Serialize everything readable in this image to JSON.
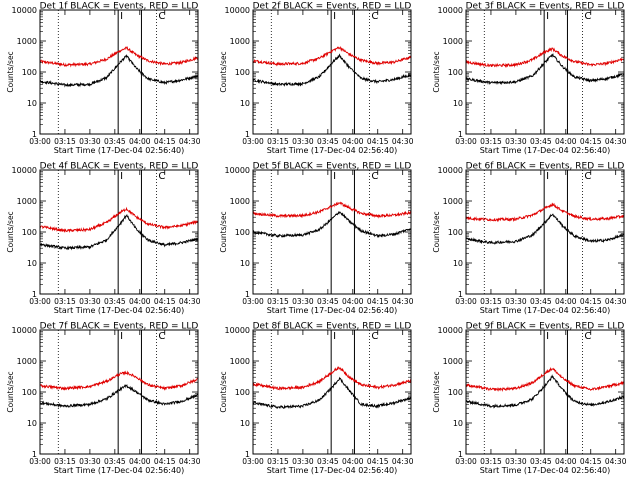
{
  "colors": {
    "events": "#000000",
    "lld": "#e00000",
    "background": "#ffffff"
  },
  "chart_data": [
    {
      "type": "line",
      "title": "Det 1f BLACK = Events, RED = LLD",
      "ylabel": "Counts/sec",
      "xlabel": "Start Time (17-Dec-04 02:56:40)",
      "yscale": "log",
      "ylim": [
        1,
        10000
      ],
      "ytick_labels": [
        "1",
        "10",
        "100",
        "1000",
        "10000"
      ],
      "xlim": [
        "03:00",
        "04:35"
      ],
      "xtick_labels": [
        "03:00",
        "03:15",
        "03:30",
        "03:45",
        "04:00",
        "04:15",
        "04:30"
      ],
      "markers": [
        {
          "time": "03:11",
          "style": "dotted"
        },
        {
          "time": "03:47",
          "style": "solid",
          "label": "I"
        },
        {
          "time": "04:01",
          "style": "solid"
        },
        {
          "time": "04:10",
          "style": "dotted",
          "label": "C"
        }
      ],
      "series": [
        {
          "color": "#e00000",
          "x": [
            "03:00",
            "03:15",
            "03:30",
            "03:40",
            "03:48",
            "03:52",
            "03:58",
            "04:05",
            "04:15",
            "04:25",
            "04:35"
          ],
          "values": [
            220,
            170,
            180,
            260,
            480,
            600,
            350,
            230,
            180,
            200,
            290
          ]
        },
        {
          "color": "#000000",
          "x": [
            "03:00",
            "03:15",
            "03:30",
            "03:40",
            "03:48",
            "03:52",
            "03:58",
            "04:05",
            "04:15",
            "04:25",
            "04:35"
          ],
          "values": [
            50,
            38,
            40,
            65,
            200,
            330,
            130,
            60,
            45,
            55,
            75
          ]
        }
      ]
    },
    {
      "type": "line",
      "title": "Det 2f BLACK = Events, RED = LLD",
      "ylabel": "Counts/sec",
      "xlabel": "Start Time (17-Dec-04 02:56:40)",
      "yscale": "log",
      "ylim": [
        1,
        10000
      ],
      "ytick_labels": [
        "1",
        "10",
        "100",
        "1000",
        "10000"
      ],
      "xlim": [
        "03:00",
        "04:35"
      ],
      "xtick_labels": [
        "03:00",
        "03:15",
        "03:30",
        "03:45",
        "04:00",
        "04:15",
        "04:30"
      ],
      "markers": [
        {
          "time": "03:11",
          "style": "dotted"
        },
        {
          "time": "03:47",
          "style": "solid",
          "label": "I"
        },
        {
          "time": "04:01",
          "style": "solid"
        },
        {
          "time": "04:10",
          "style": "dotted",
          "label": "C"
        }
      ],
      "series": [
        {
          "color": "#e00000",
          "x": [
            "03:00",
            "03:15",
            "03:30",
            "03:40",
            "03:48",
            "03:52",
            "03:58",
            "04:05",
            "04:15",
            "04:25",
            "04:35"
          ],
          "values": [
            230,
            180,
            190,
            280,
            500,
            620,
            370,
            240,
            190,
            210,
            300
          ]
        },
        {
          "color": "#000000",
          "x": [
            "03:00",
            "03:15",
            "03:30",
            "03:40",
            "03:48",
            "03:52",
            "03:58",
            "04:05",
            "04:15",
            "04:25",
            "04:35"
          ],
          "values": [
            55,
            40,
            42,
            70,
            210,
            340,
            140,
            62,
            48,
            58,
            80
          ]
        }
      ]
    },
    {
      "type": "line",
      "title": "Det 3f BLACK = Events, RED = LLD",
      "ylabel": "Counts/sec",
      "xlabel": "Start Time (17-Dec-04 02:56:40)",
      "yscale": "log",
      "ylim": [
        1,
        10000
      ],
      "ytick_labels": [
        "1",
        "10",
        "100",
        "1000",
        "10000"
      ],
      "xlim": [
        "03:00",
        "04:35"
      ],
      "xtick_labels": [
        "03:00",
        "03:15",
        "03:30",
        "03:45",
        "04:00",
        "04:15",
        "04:30"
      ],
      "markers": [
        {
          "time": "03:11",
          "style": "dotted"
        },
        {
          "time": "03:47",
          "style": "solid",
          "label": "I"
        },
        {
          "time": "04:01",
          "style": "solid"
        },
        {
          "time": "04:10",
          "style": "dotted",
          "label": "C"
        }
      ],
      "series": [
        {
          "color": "#e00000",
          "x": [
            "03:00",
            "03:15",
            "03:30",
            "03:40",
            "03:48",
            "03:52",
            "03:58",
            "04:05",
            "04:15",
            "04:25",
            "04:35"
          ],
          "values": [
            210,
            160,
            170,
            250,
            460,
            560,
            330,
            220,
            170,
            190,
            270
          ]
        },
        {
          "color": "#000000",
          "x": [
            "03:00",
            "03:15",
            "03:30",
            "03:40",
            "03:48",
            "03:52",
            "03:58",
            "04:05",
            "04:15",
            "04:25",
            "04:35"
          ],
          "values": [
            60,
            45,
            48,
            75,
            220,
            360,
            150,
            70,
            52,
            62,
            85
          ]
        }
      ]
    },
    {
      "type": "line",
      "title": "Det 4f BLACK = Events, RED = LLD",
      "ylabel": "Counts/sec",
      "xlabel": "Start Time (17-Dec-04 02:56:40)",
      "yscale": "log",
      "ylim": [
        1,
        10000
      ],
      "ytick_labels": [
        "1",
        "10",
        "100",
        "1000",
        "10000"
      ],
      "xlim": [
        "03:00",
        "04:35"
      ],
      "xtick_labels": [
        "03:00",
        "03:15",
        "03:30",
        "03:45",
        "04:00",
        "04:15",
        "04:30"
      ],
      "markers": [
        {
          "time": "03:11",
          "style": "dotted"
        },
        {
          "time": "03:47",
          "style": "solid",
          "label": "I"
        },
        {
          "time": "04:01",
          "style": "solid"
        },
        {
          "time": "04:10",
          "style": "dotted",
          "label": "C"
        }
      ],
      "series": [
        {
          "color": "#e00000",
          "x": [
            "03:00",
            "03:15",
            "03:30",
            "03:40",
            "03:48",
            "03:52",
            "03:58",
            "04:05",
            "04:15",
            "04:25",
            "04:35"
          ],
          "values": [
            150,
            110,
            120,
            200,
            420,
            560,
            300,
            180,
            140,
            160,
            220
          ]
        },
        {
          "color": "#000000",
          "x": [
            "03:00",
            "03:15",
            "03:30",
            "03:40",
            "03:48",
            "03:52",
            "03:58",
            "04:05",
            "04:15",
            "04:25",
            "04:35"
          ],
          "values": [
            40,
            30,
            33,
            55,
            180,
            350,
            120,
            55,
            38,
            45,
            60
          ]
        }
      ]
    },
    {
      "type": "line",
      "title": "Det 5f BLACK = Events, RED = LLD",
      "ylabel": "Counts/sec",
      "xlabel": "Start Time (17-Dec-04 02:56:40)",
      "yscale": "log",
      "ylim": [
        1,
        10000
      ],
      "ytick_labels": [
        "1",
        "10",
        "100",
        "1000",
        "10000"
      ],
      "xlim": [
        "03:00",
        "04:35"
      ],
      "xtick_labels": [
        "03:00",
        "03:15",
        "03:30",
        "03:45",
        "04:00",
        "04:15",
        "04:30"
      ],
      "markers": [
        {
          "time": "03:11",
          "style": "dotted"
        },
        {
          "time": "03:47",
          "style": "solid",
          "label": "I"
        },
        {
          "time": "04:01",
          "style": "solid"
        },
        {
          "time": "04:10",
          "style": "dotted",
          "label": "C"
        }
      ],
      "series": [
        {
          "color": "#e00000",
          "x": [
            "03:00",
            "03:15",
            "03:30",
            "03:40",
            "03:48",
            "03:52",
            "03:58",
            "04:05",
            "04:15",
            "04:25",
            "04:35"
          ],
          "values": [
            400,
            330,
            340,
            450,
            700,
            880,
            600,
            400,
            330,
            350,
            420
          ]
        },
        {
          "color": "#000000",
          "x": [
            "03:00",
            "03:15",
            "03:30",
            "03:40",
            "03:48",
            "03:52",
            "03:58",
            "04:05",
            "04:15",
            "04:25",
            "04:35"
          ],
          "values": [
            100,
            75,
            80,
            120,
            280,
            450,
            220,
            110,
            75,
            85,
            130
          ]
        }
      ]
    },
    {
      "type": "line",
      "title": "Det 6f BLACK = Events, RED = LLD",
      "ylabel": "Counts/sec",
      "xlabel": "Start Time (17-Dec-04 02:56:40)",
      "yscale": "log",
      "ylim": [
        1,
        10000
      ],
      "ytick_labels": [
        "1",
        "10",
        "100",
        "1000",
        "10000"
      ],
      "xlim": [
        "03:00",
        "04:35"
      ],
      "xtick_labels": [
        "03:00",
        "03:15",
        "03:30",
        "03:45",
        "04:00",
        "04:15",
        "04:30"
      ],
      "markers": [
        {
          "time": "03:11",
          "style": "dotted"
        },
        {
          "time": "03:47",
          "style": "solid",
          "label": "I"
        },
        {
          "time": "04:01",
          "style": "solid"
        },
        {
          "time": "04:10",
          "style": "dotted",
          "label": "C"
        }
      ],
      "series": [
        {
          "color": "#e00000",
          "x": [
            "03:00",
            "03:15",
            "03:30",
            "03:40",
            "03:48",
            "03:52",
            "03:58",
            "04:05",
            "04:15",
            "04:25",
            "04:35"
          ],
          "values": [
            280,
            250,
            260,
            350,
            600,
            780,
            480,
            320,
            260,
            270,
            330
          ]
        },
        {
          "color": "#000000",
          "x": [
            "03:00",
            "03:15",
            "03:30",
            "03:40",
            "03:48",
            "03:52",
            "03:58",
            "04:05",
            "04:15",
            "04:25",
            "04:35"
          ],
          "values": [
            60,
            45,
            50,
            80,
            220,
            380,
            160,
            75,
            50,
            55,
            80
          ]
        }
      ]
    },
    {
      "type": "line",
      "title": "Det 7f BLACK = Events, RED = LLD",
      "ylabel": "Counts/sec",
      "xlabel": "Start Time (17-Dec-04 02:56:40)",
      "yscale": "log",
      "ylim": [
        1,
        10000
      ],
      "ytick_labels": [
        "1",
        "10",
        "100",
        "1000",
        "10000"
      ],
      "xlim": [
        "03:00",
        "04:35"
      ],
      "xtick_labels": [
        "03:00",
        "03:15",
        "03:30",
        "03:45",
        "04:00",
        "04:15",
        "04:30"
      ],
      "markers": [
        {
          "time": "03:11",
          "style": "dotted"
        },
        {
          "time": "03:47",
          "style": "solid",
          "label": "I"
        },
        {
          "time": "04:01",
          "style": "solid"
        },
        {
          "time": "04:10",
          "style": "dotted",
          "label": "C"
        }
      ],
      "series": [
        {
          "color": "#e00000",
          "x": [
            "03:00",
            "03:15",
            "03:30",
            "03:40",
            "03:48",
            "03:52",
            "03:58",
            "04:05",
            "04:15",
            "04:25",
            "04:35"
          ],
          "values": [
            160,
            130,
            150,
            220,
            380,
            420,
            300,
            170,
            130,
            160,
            260
          ]
        },
        {
          "color": "#000000",
          "x": [
            "03:00",
            "03:15",
            "03:30",
            "03:40",
            "03:48",
            "03:52",
            "03:58",
            "04:05",
            "04:15",
            "04:25",
            "04:35"
          ],
          "values": [
            45,
            35,
            40,
            60,
            120,
            160,
            100,
            55,
            40,
            50,
            80
          ]
        }
      ]
    },
    {
      "type": "line",
      "title": "Det 8f BLACK = Events, RED = LLD",
      "ylabel": "Counts/sec",
      "xlabel": "Start Time (17-Dec-04 02:56:40)",
      "yscale": "log",
      "ylim": [
        1,
        10000
      ],
      "ytick_labels": [
        "1",
        "10",
        "100",
        "1000",
        "10000"
      ],
      "xlim": [
        "03:00",
        "04:35"
      ],
      "xtick_labels": [
        "03:00",
        "03:15",
        "03:30",
        "03:45",
        "04:00",
        "04:15",
        "04:30"
      ],
      "markers": [
        {
          "time": "03:11",
          "style": "dotted"
        },
        {
          "time": "03:47",
          "style": "solid",
          "label": "I"
        },
        {
          "time": "04:01",
          "style": "solid"
        },
        {
          "time": "04:10",
          "style": "dotted",
          "label": "C"
        }
      ],
      "series": [
        {
          "color": "#e00000",
          "x": [
            "03:00",
            "03:15",
            "03:30",
            "03:40",
            "03:48",
            "03:52",
            "03:58",
            "04:05",
            "04:15",
            "04:25",
            "04:35"
          ],
          "values": [
            180,
            130,
            140,
            220,
            450,
            620,
            300,
            170,
            140,
            170,
            230
          ]
        },
        {
          "color": "#000000",
          "x": [
            "03:00",
            "03:15",
            "03:30",
            "03:40",
            "03:48",
            "03:52",
            "03:58",
            "04:05",
            "04:15",
            "04:25",
            "04:35"
          ],
          "values": [
            45,
            32,
            35,
            55,
            150,
            280,
            110,
            40,
            35,
            45,
            65
          ]
        }
      ]
    },
    {
      "type": "line",
      "title": "Det 9f BLACK = Events, RED = LLD",
      "ylabel": "Counts/sec",
      "xlabel": "Start Time (17-Dec-04 02:56:40)",
      "yscale": "log",
      "ylim": [
        1,
        10000
      ],
      "ytick_labels": [
        "1",
        "10",
        "100",
        "1000",
        "10000"
      ],
      "xlim": [
        "03:00",
        "04:35"
      ],
      "xtick_labels": [
        "03:00",
        "03:15",
        "03:30",
        "03:45",
        "04:00",
        "04:15",
        "04:30"
      ],
      "markers": [
        {
          "time": "03:11",
          "style": "dotted"
        },
        {
          "time": "03:47",
          "style": "solid",
          "label": "I"
        },
        {
          "time": "04:01",
          "style": "solid"
        },
        {
          "time": "04:10",
          "style": "dotted",
          "label": "C"
        }
      ],
      "series": [
        {
          "color": "#e00000",
          "x": [
            "03:00",
            "03:15",
            "03:30",
            "03:40",
            "03:48",
            "03:52",
            "03:58",
            "04:05",
            "04:15",
            "04:25",
            "04:35"
          ],
          "values": [
            170,
            120,
            130,
            200,
            420,
            580,
            280,
            160,
            120,
            150,
            200
          ]
        },
        {
          "color": "#000000",
          "x": [
            "03:00",
            "03:15",
            "03:30",
            "03:40",
            "03:48",
            "03:52",
            "03:58",
            "04:05",
            "04:15",
            "04:25",
            "04:35"
          ],
          "values": [
            50,
            35,
            38,
            60,
            170,
            320,
            120,
            50,
            38,
            48,
            70
          ]
        }
      ]
    }
  ]
}
